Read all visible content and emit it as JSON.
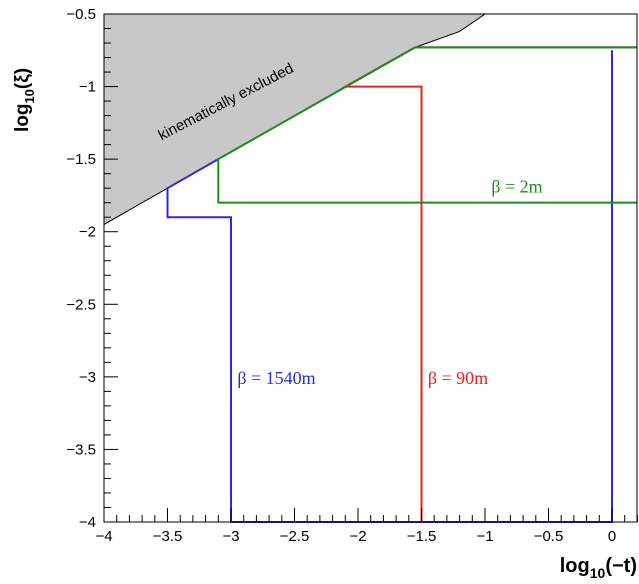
{
  "chart_data": {
    "type": "line",
    "title": "",
    "xlabel": {
      "main": "log",
      "sub": "10",
      "tail": "(−t)"
    },
    "ylabel": {
      "main": "log",
      "sub": "10",
      "tail": "(ξ)"
    },
    "xlim": [
      -4,
      0.2
    ],
    "ylim": [
      -4,
      -0.5
    ],
    "xticks_major": [
      -4,
      -3.5,
      -3,
      -2.5,
      -2,
      -1.5,
      -1,
      -0.5,
      0
    ],
    "xtick_labels": [
      "−4",
      "−3.5",
      "−3",
      "−2.5",
      "−2",
      "−1.5",
      "−1",
      "−0.5",
      "0"
    ],
    "yticks_major": [
      -4,
      -3.5,
      -3,
      -2.5,
      -2,
      -1.5,
      -1,
      -0.5
    ],
    "ytick_labels": [
      "−4",
      "−3.5",
      "−3",
      "−2.5",
      "−2",
      "−1.5",
      "−1",
      "−0.5"
    ],
    "grid": false,
    "excluded_region": {
      "label": "kinematically excluded",
      "color": "#c8c8c8",
      "boundary": [
        [
          -4,
          -1.95
        ],
        [
          -3.5,
          -1.7
        ],
        [
          -3.1,
          -1.5
        ],
        [
          -2.1,
          -1.0
        ],
        [
          -1.55,
          -0.73
        ],
        [
          -1.2,
          -0.62
        ],
        [
          -1.0,
          -0.5
        ]
      ]
    },
    "series": [
      {
        "name": "β = 1540m",
        "color": "#2b2bdd",
        "points": [
          [
            0,
            -0.75
          ],
          [
            0,
            -4.0
          ],
          [
            -3.0,
            -4.0
          ],
          [
            -3.0,
            -1.9
          ],
          [
            -3.5,
            -1.9
          ],
          [
            -3.5,
            -1.7
          ],
          [
            -3.1,
            -1.5
          ]
        ]
      },
      {
        "name": "β = 90m",
        "color": "#e02424",
        "points": [
          [
            0.2,
            -0.73
          ],
          [
            -1.55,
            -0.73
          ],
          [
            -2.1,
            -1.0
          ],
          [
            -1.5,
            -1.0
          ],
          [
            -1.5,
            -4.0
          ]
        ]
      },
      {
        "name": "β = 2m",
        "color": "#1e8c1e",
        "points": [
          [
            0.2,
            -1.8
          ],
          [
            -3.1,
            -1.8
          ],
          [
            -3.1,
            -1.5
          ],
          [
            -1.55,
            -0.73
          ],
          [
            0.2,
            -0.73
          ]
        ]
      }
    ],
    "annotations": [
      {
        "text": "β = 1540m",
        "color": "#2b2bdd",
        "x": -2.95,
        "y": -3.05
      },
      {
        "text": "β = 90m",
        "color": "#e02424",
        "x": -1.45,
        "y": -3.05
      },
      {
        "text": "β = 2m",
        "color": "#1e8c1e",
        "x": -0.95,
        "y": -1.73
      }
    ]
  }
}
